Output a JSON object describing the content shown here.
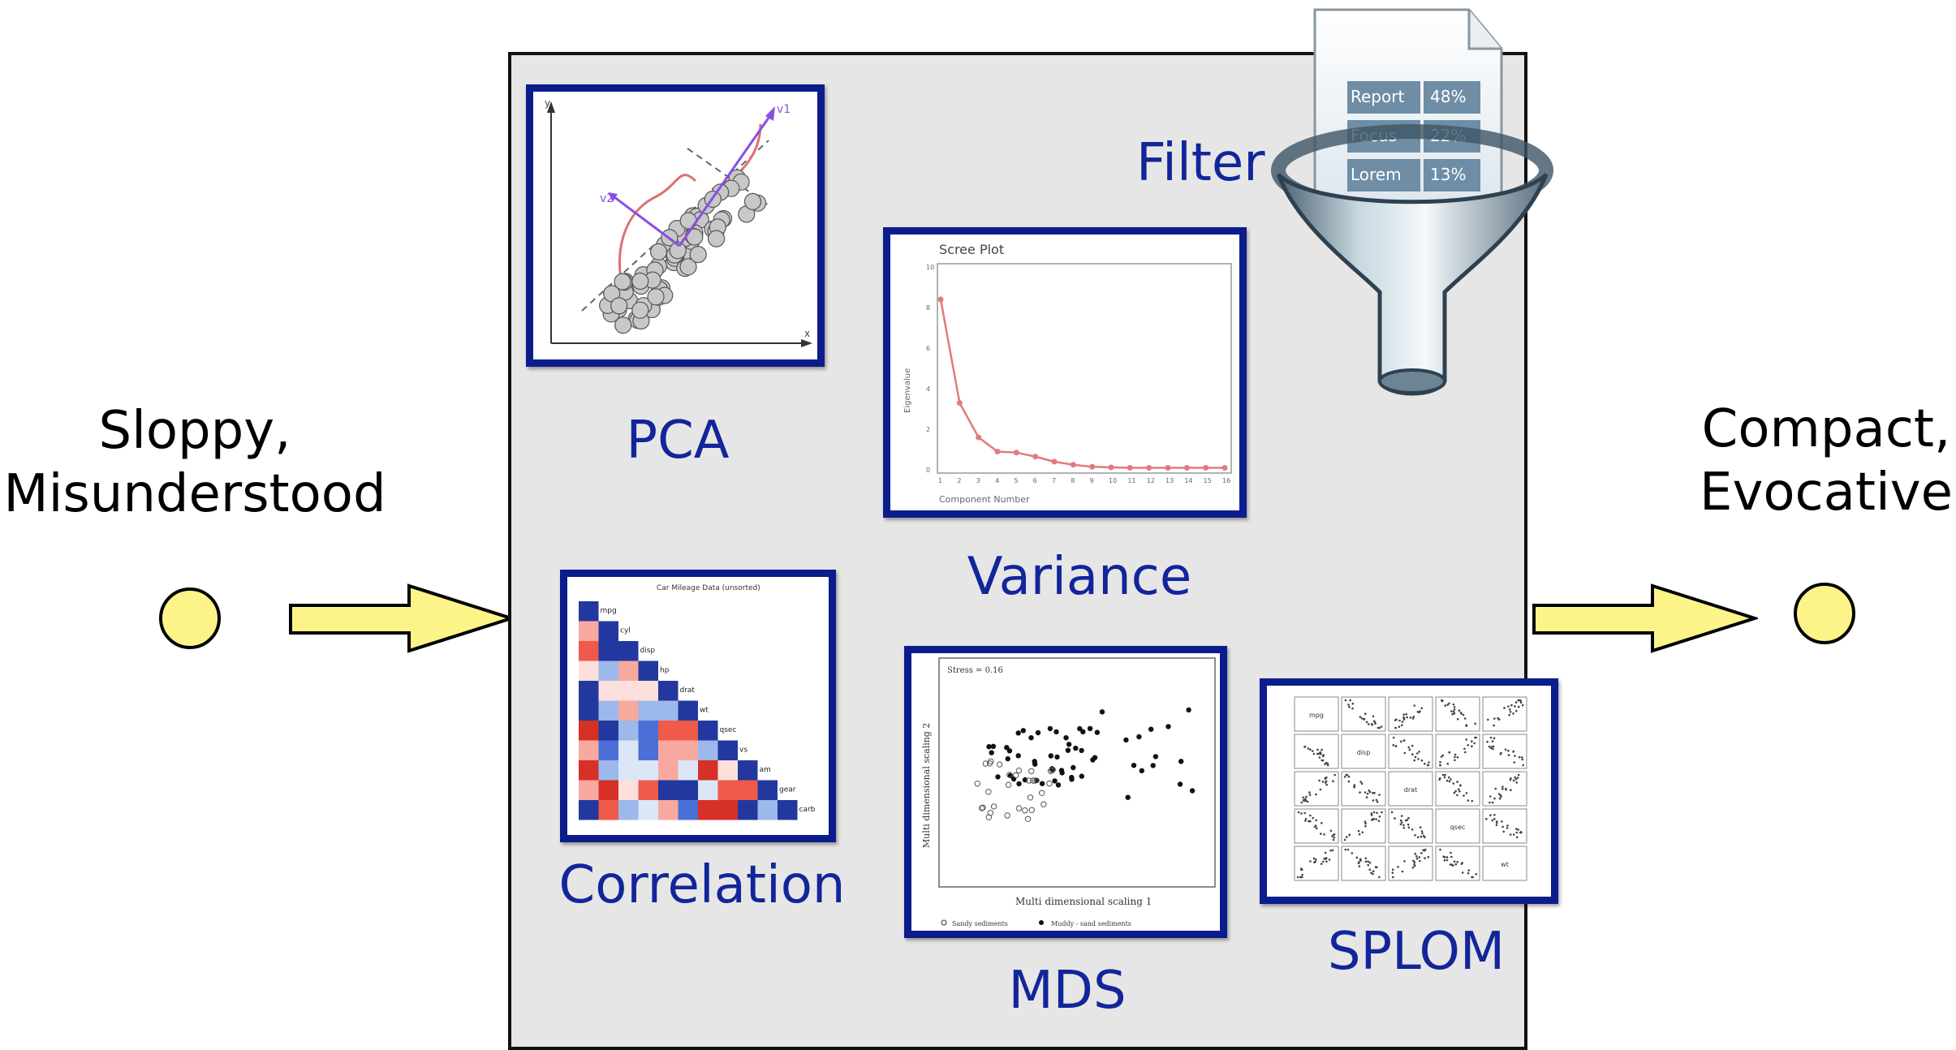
{
  "input": {
    "line1": "Sloppy,",
    "line2": "Misunderstood"
  },
  "output": {
    "line1": "Compact,",
    "line2": "Evocative"
  },
  "methods": {
    "pca": "PCA",
    "variance": "Variance",
    "correlation": "Correlation",
    "mds": "MDS",
    "splom": "SPLOM",
    "filter": "Filter"
  },
  "scree": {
    "title": "Scree Plot",
    "xlabel": "Component Number",
    "ylabel": "Eigenvalue",
    "yticks": [
      "10",
      "8",
      "6",
      "4",
      "2",
      "0"
    ],
    "xticks": [
      "1",
      "2",
      "3",
      "4",
      "5",
      "6",
      "7",
      "8",
      "9",
      "10",
      "11",
      "12",
      "13",
      "14",
      "15",
      "16"
    ],
    "values": [
      8.4,
      3.3,
      1.6,
      0.9,
      0.85,
      0.65,
      0.4,
      0.25,
      0.15,
      0.12,
      0.1,
      0.1,
      0.1,
      0.1,
      0.1,
      0.1
    ]
  },
  "correlation_plot": {
    "title": "Car Mileage Data (unsorted)",
    "variables": [
      "mpg",
      "cyl",
      "disp",
      "hp",
      "drat",
      "wt",
      "qsec",
      "vs",
      "am",
      "gear",
      "carb"
    ]
  },
  "mds_plot": {
    "stress": "Stress = 0.16",
    "xlabel": "Multi dimensional scaling 1",
    "ylabel": "Multi dimensional scaling 2",
    "legend": [
      "Sandy sediments",
      "Muddy - sand sediments"
    ]
  },
  "splom_plot": {
    "variables": [
      "mpg",
      "disp",
      "drat",
      "qsec",
      "wt"
    ]
  },
  "pca_plot": {
    "x_axis": "x",
    "y_axis": "y",
    "v1": "v1",
    "v2": "v2"
  },
  "filter_icon": {
    "rows": [
      {
        "label": "Report",
        "value": "48%"
      },
      {
        "label": "Focus",
        "value": "22%"
      },
      {
        "label": "Lorem",
        "value": "13%"
      }
    ]
  },
  "colors": {
    "accent_blue": "#0b1d8c",
    "label_blue": "#12259a",
    "arrow_yellow": "#fdf489",
    "panel_gray": "#e6e6e6"
  }
}
